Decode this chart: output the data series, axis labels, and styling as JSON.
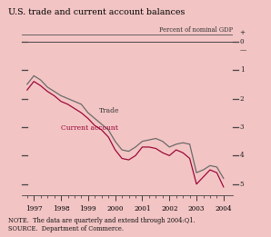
{
  "title": "U.S. trade and current account balances",
  "ylabel_right": "Percent of nominal GDP",
  "note": "NOTE.  The data are quarterly and extend through 2004:Q1.",
  "source": "SOURCE.  Department of Commerce.",
  "background_color": "#f2c4c4",
  "title_color": "#000000",
  "trade_color": "#666666",
  "current_color": "#990033",
  "trade_label": "Trade",
  "current_label": "Current account",
  "quarters": [
    1996.75,
    1997.0,
    1997.25,
    1997.5,
    1997.75,
    1998.0,
    1998.25,
    1998.5,
    1998.75,
    1999.0,
    1999.25,
    1999.5,
    1999.75,
    2000.0,
    2000.25,
    2000.5,
    2000.75,
    2001.0,
    2001.25,
    2001.5,
    2001.75,
    2002.0,
    2002.25,
    2002.5,
    2002.75,
    2003.0,
    2003.25,
    2003.5,
    2003.75,
    2004.0
  ],
  "trade_vals": [
    -1.5,
    -1.2,
    -1.35,
    -1.6,
    -1.75,
    -1.9,
    -2.0,
    -2.1,
    -2.2,
    -2.5,
    -2.7,
    -2.9,
    -3.1,
    -3.5,
    -3.8,
    -3.85,
    -3.7,
    -3.5,
    -3.45,
    -3.4,
    -3.5,
    -3.7,
    -3.6,
    -3.55,
    -3.6,
    -4.6,
    -4.5,
    -4.35,
    -4.4,
    -4.8
  ],
  "ca_vals": [
    -1.7,
    -1.4,
    -1.55,
    -1.75,
    -1.9,
    -2.1,
    -2.2,
    -2.35,
    -2.5,
    -2.7,
    -2.95,
    -3.1,
    -3.35,
    -3.8,
    -4.1,
    -4.15,
    -4.0,
    -3.7,
    -3.7,
    -3.75,
    -3.9,
    -4.0,
    -3.8,
    -3.9,
    -4.1,
    -5.0,
    -4.75,
    -4.5,
    -4.6,
    -5.1
  ],
  "xtick_positions": [
    1997,
    1998,
    1999,
    2000,
    2001,
    2002,
    2003,
    2004
  ],
  "xtick_labels": [
    "1997",
    "1998",
    "1999",
    "2000",
    "2001",
    "2002",
    "2003",
    "2004"
  ]
}
